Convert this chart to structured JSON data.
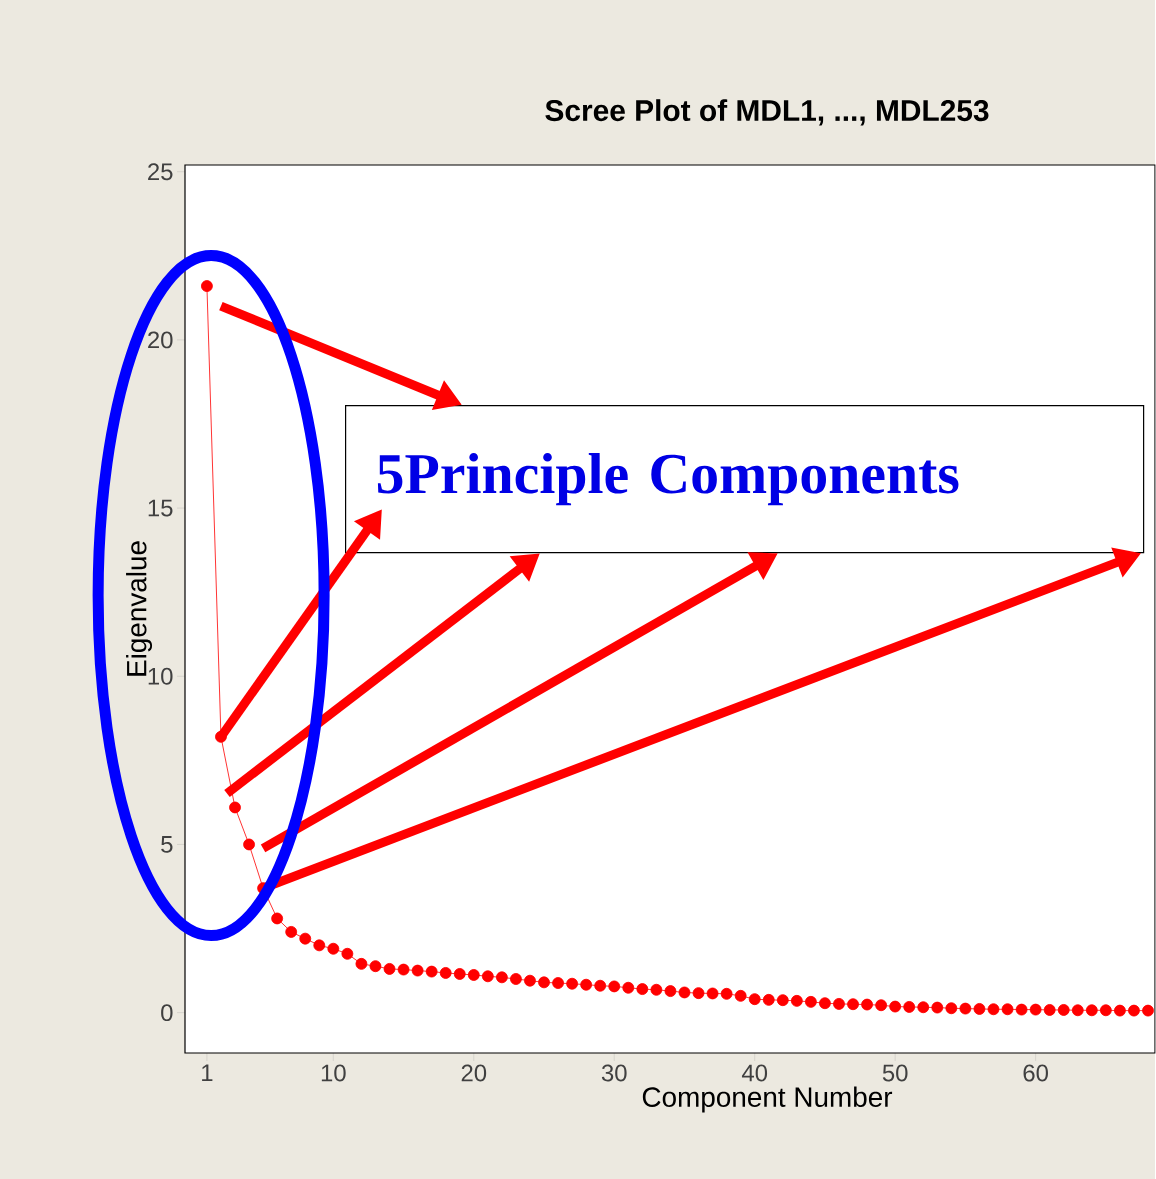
{
  "chart_data": {
    "type": "line",
    "title": "Scree Plot of MDL1, ..., MDL253",
    "xlabel": "Component Number",
    "ylabel": "Eigenvalue",
    "annotations": [
      "5Principle Components"
    ],
    "x": [
      1,
      2,
      3,
      4,
      5,
      6,
      7,
      8,
      9,
      10,
      11,
      12,
      13,
      14,
      15,
      16,
      17,
      18,
      19,
      20,
      21,
      22,
      23,
      24,
      25,
      26,
      27,
      28,
      29,
      30,
      31,
      32,
      33,
      34,
      35,
      36,
      37,
      38,
      39,
      40,
      41,
      42,
      43,
      44,
      45,
      46,
      47,
      48,
      49,
      50,
      51,
      52,
      53,
      54,
      55,
      56,
      57,
      58,
      59,
      60,
      61,
      62,
      63,
      64,
      65,
      66,
      67,
      68
    ],
    "series": [
      {
        "color": "#ff0000",
        "values": [
          21.6,
          8.2,
          6.1,
          5.0,
          3.7,
          2.8,
          2.4,
          2.2,
          2.0,
          1.9,
          1.75,
          1.45,
          1.38,
          1.3,
          1.28,
          1.25,
          1.22,
          1.18,
          1.15,
          1.12,
          1.08,
          1.05,
          1.0,
          0.95,
          0.9,
          0.88,
          0.86,
          0.83,
          0.8,
          0.78,
          0.74,
          0.7,
          0.68,
          0.64,
          0.6,
          0.58,
          0.57,
          0.56,
          0.5,
          0.4,
          0.38,
          0.37,
          0.35,
          0.32,
          0.28,
          0.26,
          0.25,
          0.24,
          0.22,
          0.18,
          0.17,
          0.16,
          0.15,
          0.13,
          0.12,
          0.11,
          0.1,
          0.1,
          0.09,
          0.09,
          0.08,
          0.08,
          0.07,
          0.07,
          0.07,
          0.06,
          0.06,
          0.06
        ]
      }
    ],
    "xlim": [
      -0.56,
      68.5
    ],
    "ylim": [
      -1.2,
      25.2
    ],
    "xticks": [
      1,
      10,
      20,
      30,
      40,
      50,
      60
    ],
    "yticks": [
      0,
      5,
      10,
      15,
      20,
      25
    ],
    "marker": "circle",
    "line_style": "solid",
    "grid": false
  }
}
